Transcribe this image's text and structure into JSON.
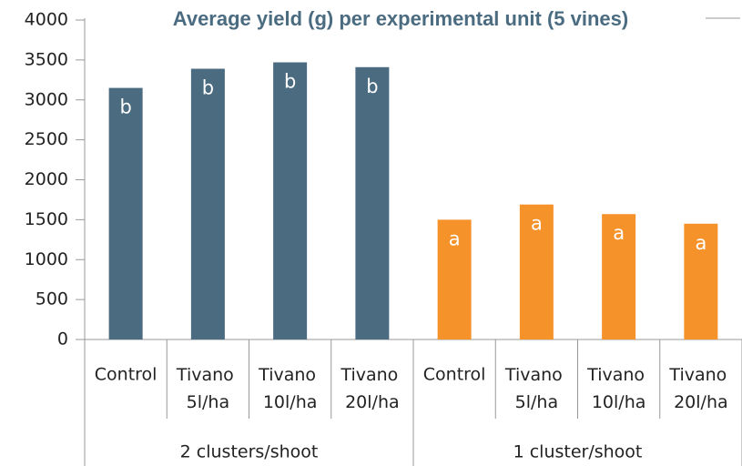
{
  "chart_data": {
    "type": "bar",
    "title": "Average yield (g) per experimental unit (5 vines)",
    "categories": [
      "Control",
      "Tivano 5l/ha",
      "Tivano 10l/ha",
      "Tivano 20l/ha",
      "Control",
      "Tivano 5l/ha",
      "Tivano 10l/ha",
      "Tivano 20l/ha"
    ],
    "group_labels": [
      "2 clusters/shoot",
      "1 cluster/shoot"
    ],
    "colors": [
      "#4a6b80",
      "#f5922a"
    ],
    "values": [
      3150,
      3390,
      3470,
      3410,
      1500,
      1690,
      1570,
      1450
    ],
    "annotations": [
      "b",
      "b",
      "b",
      "b",
      "a",
      "a",
      "a",
      "a"
    ],
    "ylim": [
      0,
      4000
    ],
    "yticks": [
      0,
      500,
      1000,
      1500,
      2000,
      2500,
      3000,
      3500,
      4000
    ],
    "grid": false
  }
}
